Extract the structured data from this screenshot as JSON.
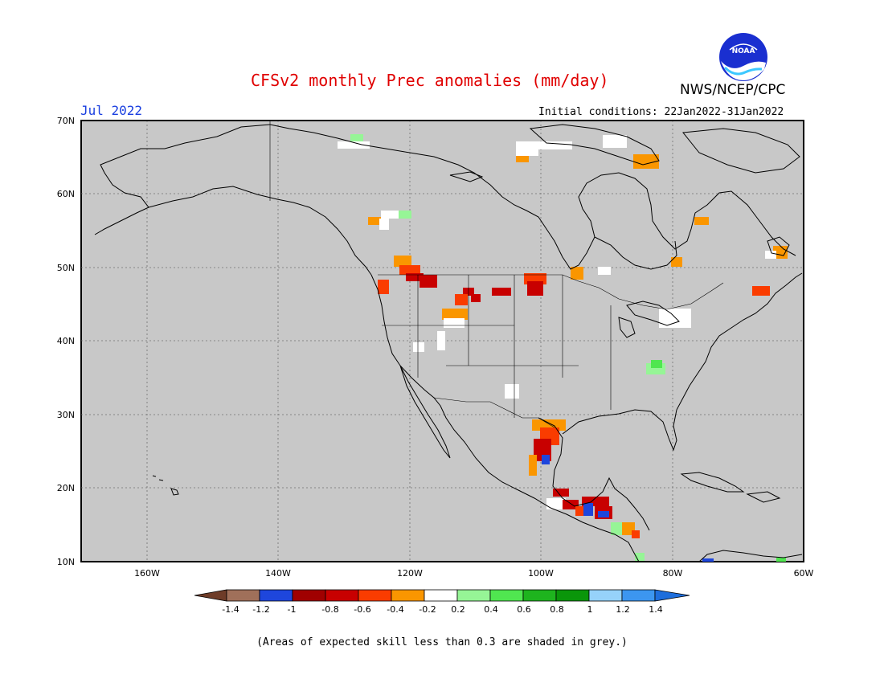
{
  "header": {
    "title": "CFSv2 monthly Prec anomalies (mm/day)",
    "month": "Jul 2022",
    "agency": "NWS/NCEP/CPC",
    "initial_conditions": "Initial conditions: 22Jan2022-31Jan2022",
    "logo_text": "NOAA"
  },
  "map": {
    "lat_labels": [
      "70N",
      "60N",
      "50N",
      "40N",
      "30N",
      "20N",
      "10N"
    ],
    "lon_labels": [
      "160W",
      "140W",
      "120W",
      "100W",
      "80W",
      "60W"
    ],
    "colors": {
      "background": "#c8c8c8",
      "coast": "#000000",
      "dry_strong": "#c80000",
      "dry_mid": "#fa3c00",
      "dry_weak": "#fa9600",
      "neutral": "#ffffff",
      "wet_weak": "#96f596",
      "wet_mid": "#50e650",
      "wet_strong": "#1eb41e",
      "very_wet": "#1e46dc"
    }
  },
  "colorbar": {
    "labels": [
      "-1.4",
      "-1.2",
      "-1",
      "-0.8",
      "-0.6",
      "-0.4",
      "-0.2",
      "0.2",
      "0.4",
      "0.6",
      "0.8",
      "1",
      "1.2",
      "1.4"
    ],
    "colors": [
      "#a0705a",
      "#1e46dc",
      "#a00000",
      "#c80000",
      "#fa3c00",
      "#fa9600",
      "#ffffff",
      "#96f596",
      "#50e650",
      "#1eb41e",
      "#0a960a",
      "#96d2fa",
      "#3c96f0"
    ],
    "low_end_color": "#6e3c28",
    "high_end_color": "#1e6edc"
  },
  "footnote": "(Areas of expected skill less than 0.3 are shaded in grey.)"
}
